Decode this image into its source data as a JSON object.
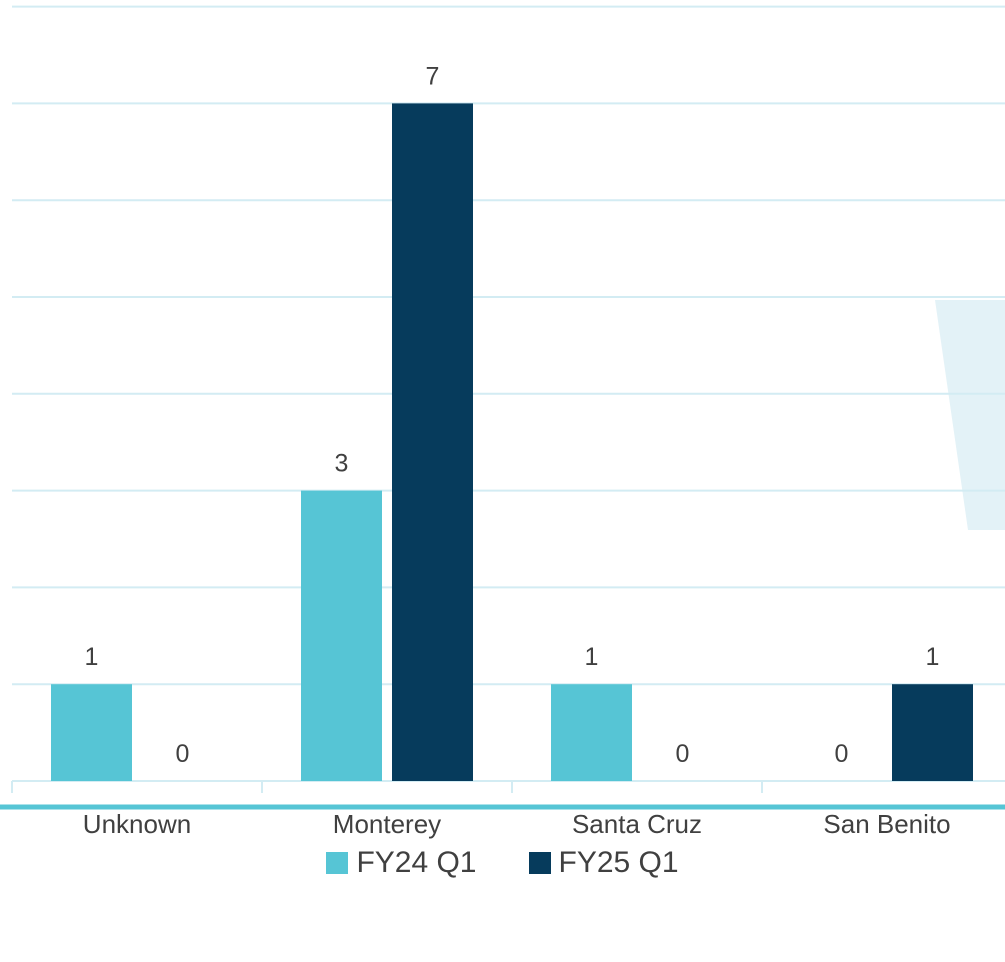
{
  "chart_data": {
    "type": "bar",
    "categories": [
      "Unknown",
      "Monterey",
      "Santa Cruz",
      "San Benito"
    ],
    "series": [
      {
        "name": "FY24 Q1",
        "values": [
          1,
          3,
          1,
          0
        ],
        "color": "#56c5d5"
      },
      {
        "name": "FY25 Q1",
        "values": [
          0,
          7,
          0,
          1
        ],
        "color": "#063b5c"
      }
    ],
    "data_labels": true,
    "ylim": [
      0,
      8
    ],
    "grid": true,
    "gridline_color": "#d3ecf3",
    "accent_line_color": "#56c5d5",
    "legend_position": "bottom"
  }
}
